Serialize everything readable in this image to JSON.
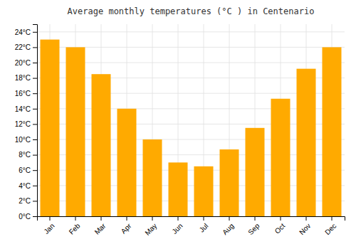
{
  "chart_data": {
    "type": "bar",
    "title": "Average monthly temperatures (°C ) in Centenario",
    "categories": [
      "Jan",
      "Feb",
      "Mar",
      "Apr",
      "May",
      "Jun",
      "Jul",
      "Aug",
      "Sep",
      "Oct",
      "Nov",
      "Dec"
    ],
    "values": [
      23.0,
      22.0,
      18.5,
      14.0,
      10.0,
      7.0,
      6.5,
      8.7,
      11.5,
      15.3,
      19.2,
      22.0
    ],
    "color": "#FFAA00",
    "ylim": [
      0,
      25
    ],
    "yticks": [
      {
        "value": 0,
        "label": "0°C"
      },
      {
        "value": 2,
        "label": "2°C"
      },
      {
        "value": 4,
        "label": "4°C"
      },
      {
        "value": 6,
        "label": "6°C"
      },
      {
        "value": 8,
        "label": "8°C"
      },
      {
        "value": 10,
        "label": "10°C"
      },
      {
        "value": 12,
        "label": "12°C"
      },
      {
        "value": 14,
        "label": "14°C"
      },
      {
        "value": 16,
        "label": "16°C"
      },
      {
        "value": 18,
        "label": "18°C"
      },
      {
        "value": 20,
        "label": "20°C"
      },
      {
        "value": 22,
        "label": "22°C"
      },
      {
        "value": 24,
        "label": "24°C"
      }
    ],
    "grid": true
  }
}
